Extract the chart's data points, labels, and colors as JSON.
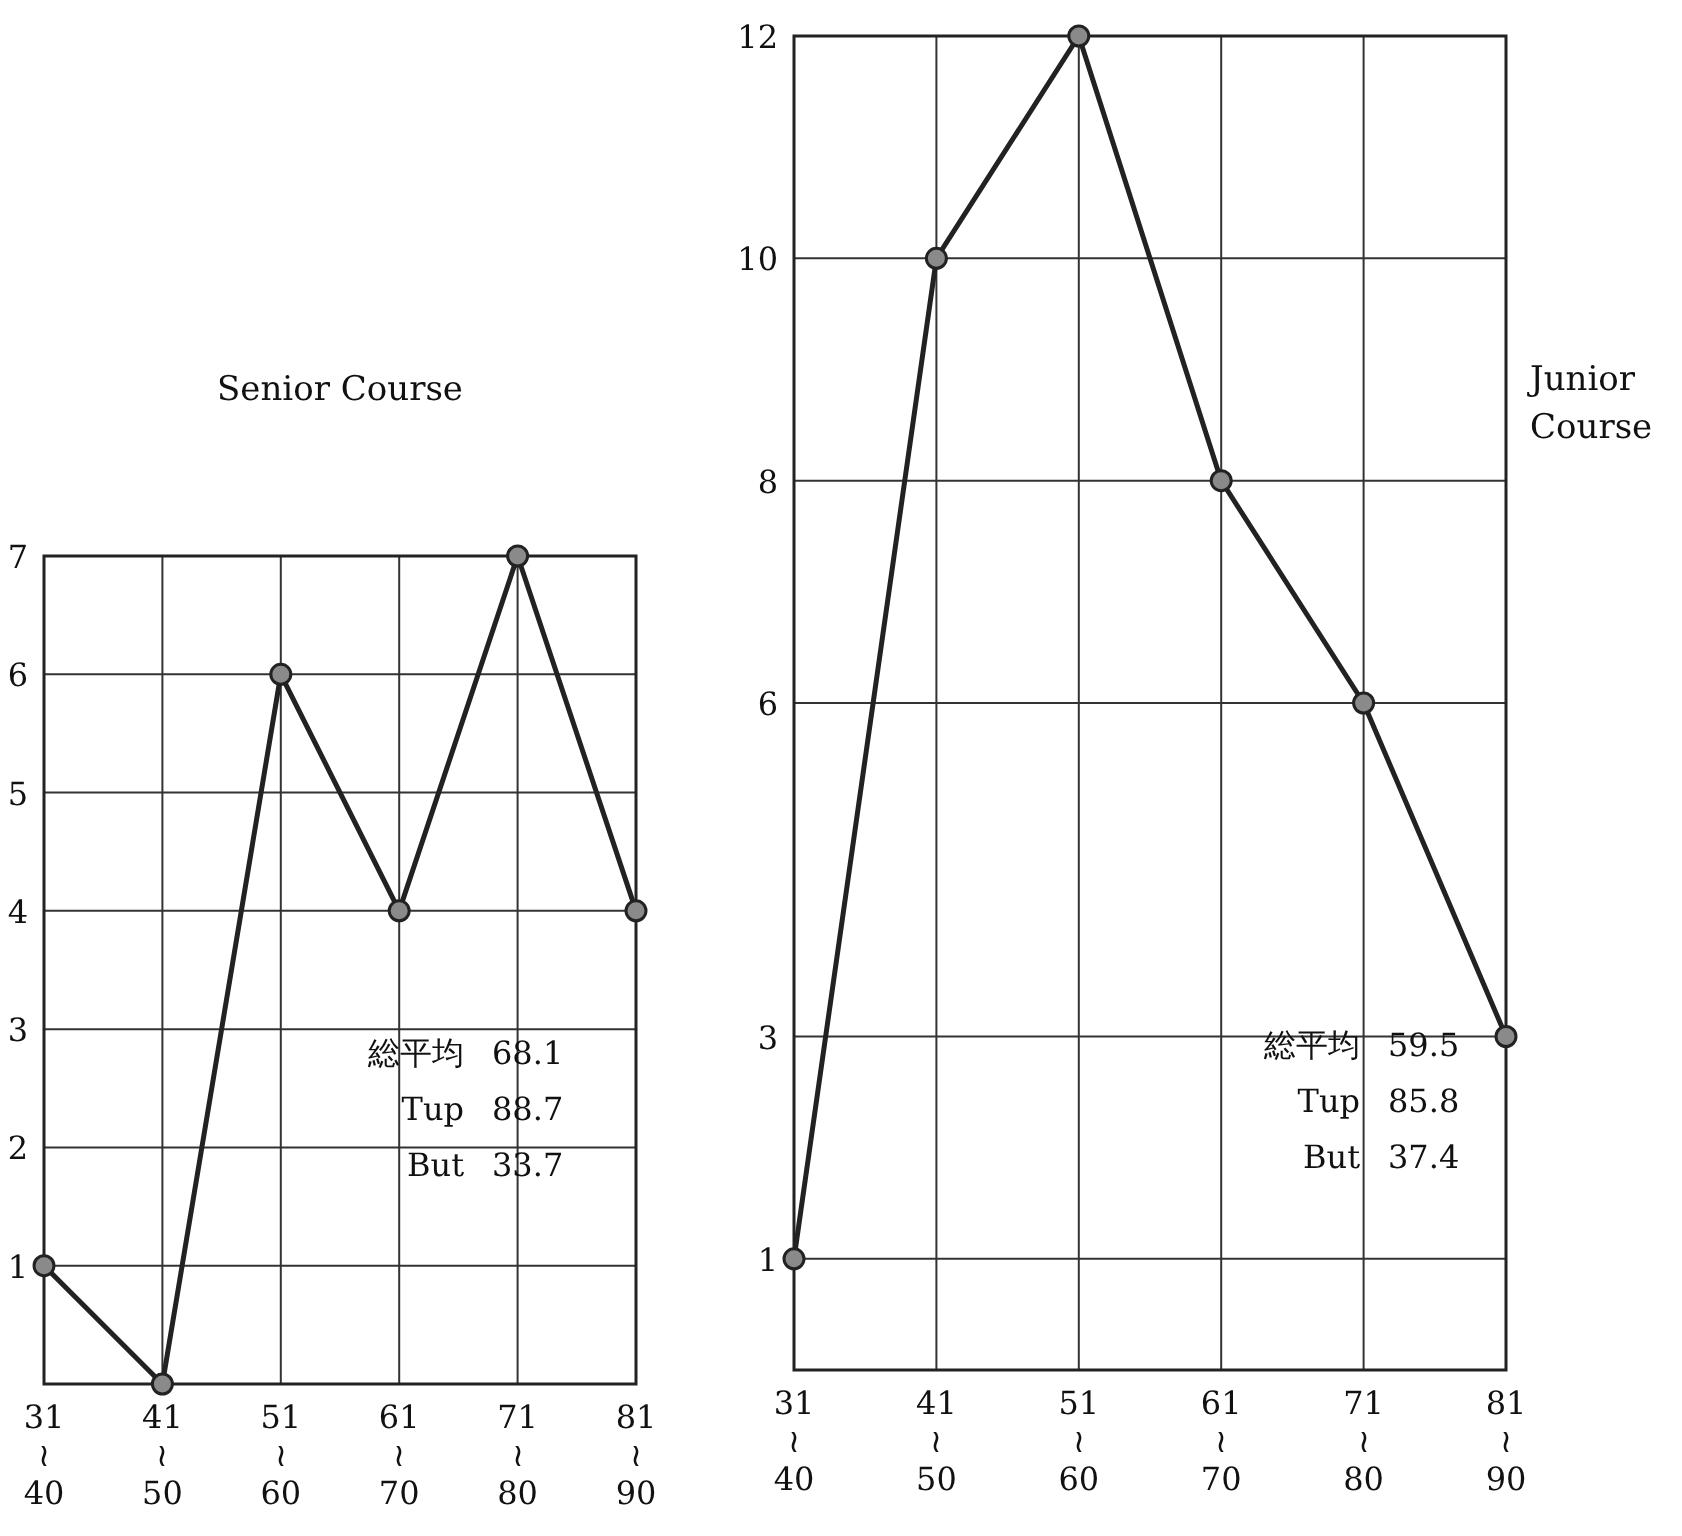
{
  "chart_data": [
    {
      "type": "line",
      "title": "Senior Course",
      "categories": [
        "31\n≀\n40",
        "41\n≀\n50",
        "51\n≀\n60",
        "61\n≀\n70",
        "71\n≀\n80",
        "81\n≀\n90"
      ],
      "series": [
        {
          "color": "#222222",
          "values": [
            1,
            0,
            6,
            4,
            7,
            4
          ]
        }
      ],
      "ylim": [
        0,
        7
      ],
      "yticks": [
        1,
        2,
        3,
        4,
        5,
        6,
        7
      ],
      "grid": true,
      "marker": "circle",
      "line_style": "solid",
      "annotations": [
        "総平均 68.1",
        "Tup 88.7",
        "But 33.7"
      ]
    },
    {
      "type": "line",
      "title": "Junior Course",
      "categories": [
        "31\n≀\n40",
        "41\n≀\n50",
        "51\n≀\n60",
        "61\n≀\n70",
        "71\n≀\n80",
        "81\n≀\n90"
      ],
      "series": [
        {
          "color": "#222222",
          "values": [
            1,
            10,
            12,
            8,
            6,
            3
          ]
        }
      ],
      "ylim": [
        0,
        12
      ],
      "yticks": [
        1,
        3,
        6,
        8,
        10,
        12
      ],
      "grid": true,
      "marker": "circle",
      "line_style": "solid",
      "annotations": [
        "総平均 59.5",
        "Tup 85.8",
        "But 37.4"
      ]
    }
  ]
}
